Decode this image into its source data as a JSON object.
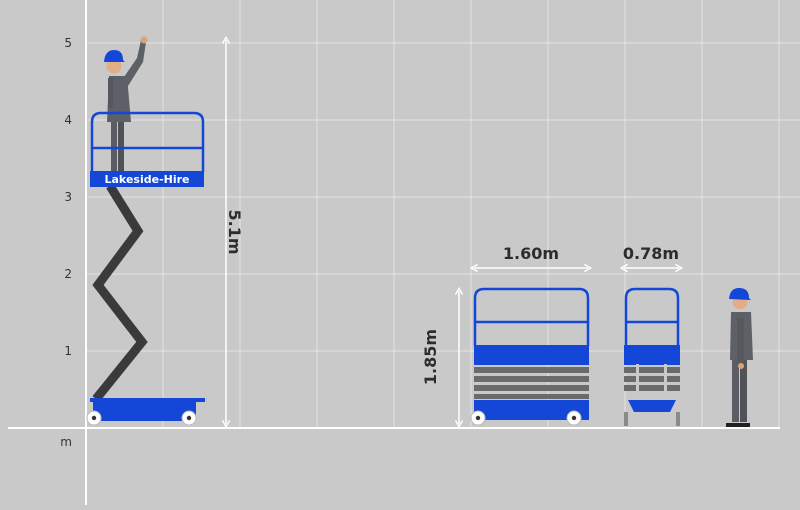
{
  "axis": {
    "unit": "m",
    "ticks": [
      {
        "value": 1,
        "label": "1"
      },
      {
        "value": 2,
        "label": "2"
      },
      {
        "value": 3,
        "label": "3"
      },
      {
        "value": 4,
        "label": "4"
      },
      {
        "value": 5,
        "label": "5"
      }
    ]
  },
  "platform": {
    "brand": "Lakeside-Hire",
    "working_height": "5.1m"
  },
  "stowed": {
    "length": "1.60m",
    "width": "0.78m",
    "height": "1.85m"
  },
  "colors": {
    "background": "#c9c9c9",
    "grid": "#e4e4e4",
    "accent": "#1446d8",
    "scissor": "#3a3a3a",
    "worker": "#5d6066",
    "helmet": "#1446d8",
    "dimension": "#ffffff"
  }
}
